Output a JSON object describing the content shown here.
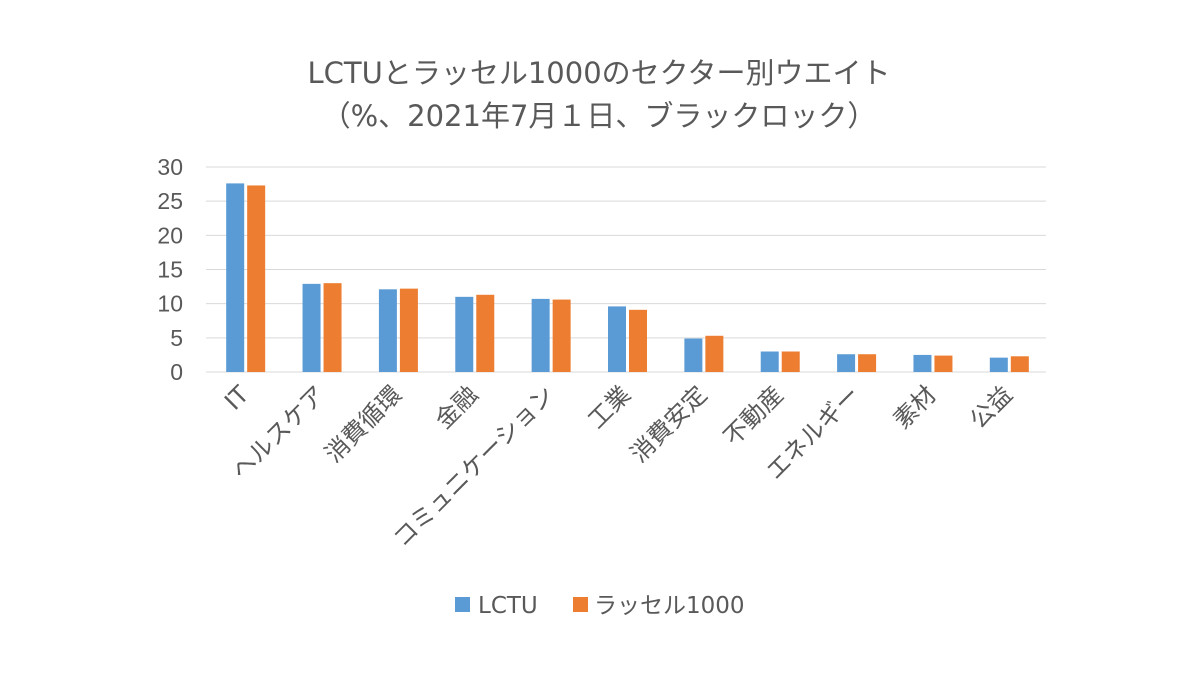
{
  "chart_data": {
    "type": "bar",
    "title": "LCTUとラッセル1000のセクター別ウエイト",
    "subtitle": "（%、2021年7月１日、ブラックロック）",
    "categories": [
      "IT",
      "ヘルスケア",
      "消費循環",
      "金融",
      "コミュニケーション",
      "工業",
      "消費安定",
      "不動産",
      "エネルギー",
      "素材",
      "公益"
    ],
    "series": [
      {
        "name": "LCTU",
        "color": "#5b9bd5",
        "values": [
          27.6,
          12.9,
          12.1,
          11.0,
          10.7,
          9.6,
          4.9,
          3.0,
          2.6,
          2.5,
          2.1
        ]
      },
      {
        "name": "ラッセル1000",
        "color": "#ed7d31",
        "values": [
          27.3,
          13.0,
          12.2,
          11.3,
          10.6,
          9.1,
          5.3,
          3.0,
          2.6,
          2.4,
          2.3
        ]
      }
    ],
    "yticks": [
      0,
      5,
      10,
      15,
      20,
      25,
      30
    ],
    "ylim": [
      0,
      30
    ],
    "xlabel": "",
    "ylabel": "",
    "grid": true,
    "legend_position": "bottom"
  }
}
